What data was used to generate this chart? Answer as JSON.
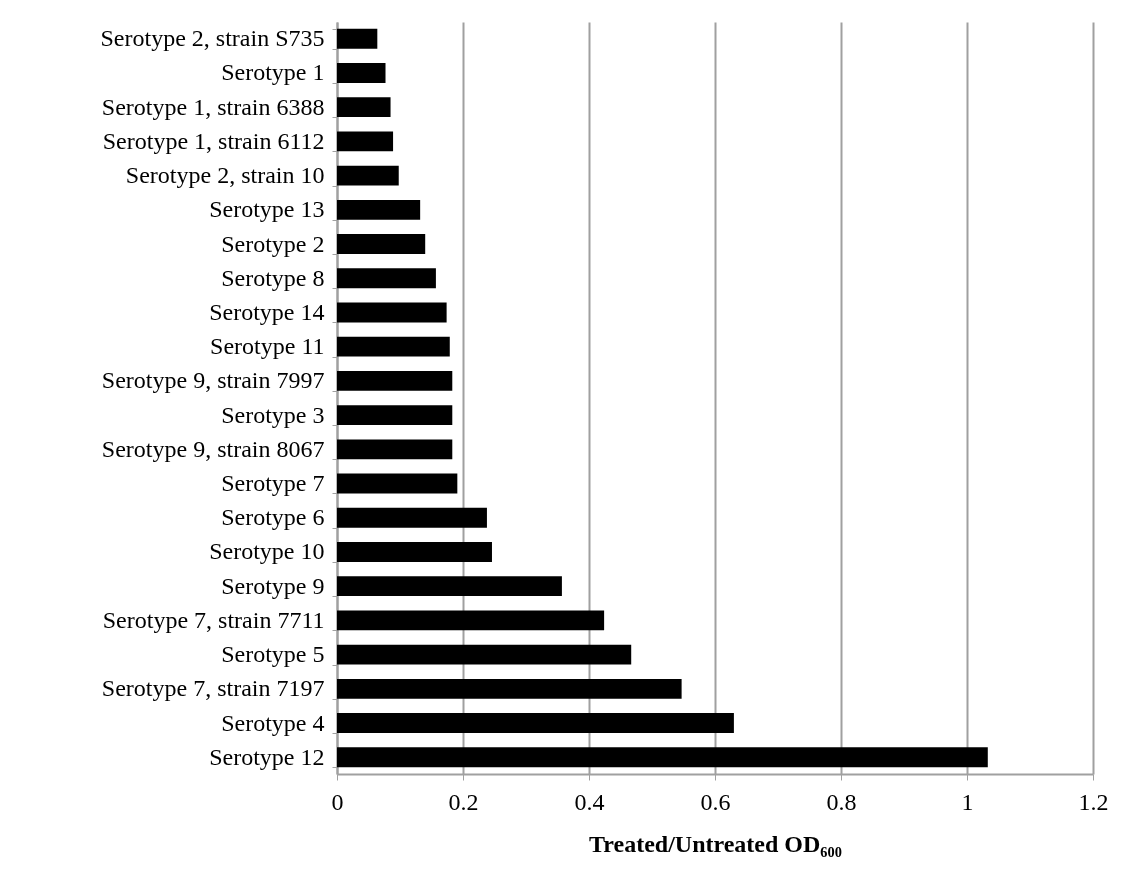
{
  "chart_data": {
    "type": "bar",
    "orientation": "horizontal",
    "xlabel": "Treated/Untreated OD₆₀₀",
    "categories": [
      "Serotype 2, strain S735",
      "Serotype 1",
      "Serotype 1, strain 6388",
      "Serotype 1, strain 6112",
      "Serotype 2, strain 10",
      "Serotype 13",
      "Serotype 2",
      "Serotype 8",
      "Serotype 14",
      "Serotype 11",
      "Serotype 9, strain 7997",
      "Serotype 3",
      "Serotype 9, strain 8067",
      "Serotype 7",
      "Serotype 6",
      "Serotype 10",
      "Serotype 9",
      "Serotype 7, strain 7711",
      "Serotype 5",
      "Serotype 7, strain 7197",
      "Serotype 4",
      "Serotype 12"
    ],
    "values": [
      0.064,
      0.077,
      0.085,
      0.089,
      0.098,
      0.132,
      0.14,
      0.157,
      0.174,
      0.179,
      0.183,
      0.183,
      0.183,
      0.191,
      0.238,
      0.246,
      0.357,
      0.424,
      0.467,
      0.547,
      0.63,
      1.033
    ],
    "color": "#000000",
    "xlim": [
      0,
      1.2
    ],
    "xticks": [
      0,
      0.2,
      0.4,
      0.6,
      0.8,
      1,
      1.2
    ],
    "grid": "x"
  }
}
